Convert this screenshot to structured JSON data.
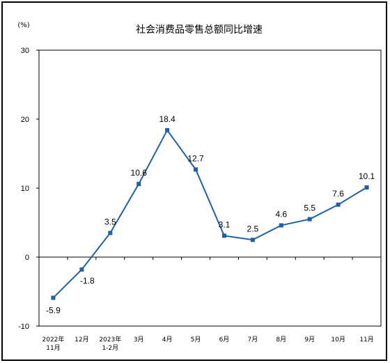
{
  "chart_data": {
    "type": "line",
    "title": "社会消费品零售总额同比增速",
    "unit_label": "(%)",
    "categories": [
      [
        "2022年",
        "11月"
      ],
      [
        "12月"
      ],
      [
        "2023年",
        "1-2月"
      ],
      [
        "3月"
      ],
      [
        "4月"
      ],
      [
        "5月"
      ],
      [
        "6月"
      ],
      [
        "7月"
      ],
      [
        "8月"
      ],
      [
        "9月"
      ],
      [
        "10月"
      ],
      [
        "11月"
      ]
    ],
    "values": [
      -5.9,
      -1.8,
      3.5,
      10.6,
      18.4,
      12.7,
      3.1,
      2.5,
      4.6,
      5.5,
      7.6,
      10.1
    ],
    "data_labels": [
      "-5.9",
      "-1.8",
      "3.5",
      "10.6",
      "18.4",
      "12.7",
      "3.1",
      "2.5",
      "4.6",
      "5.5",
      "7.6",
      "10.1"
    ],
    "ylim": [
      -10,
      30
    ],
    "yticks": [
      -10,
      0,
      10,
      20,
      30
    ],
    "grid": false,
    "line_color": "#1f5fa8",
    "marker": "square"
  }
}
